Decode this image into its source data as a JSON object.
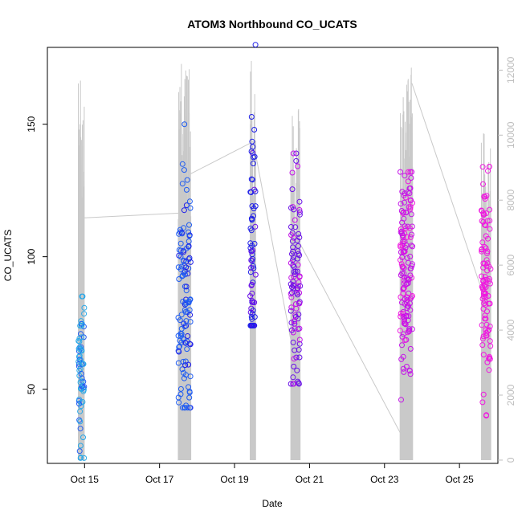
{
  "chart_data": {
    "type": "scatter",
    "title": "ATOM3 Northbound CO_UCATS",
    "xlabel": "Date",
    "ylabel": "CO_UCATS",
    "xlim": [
      "2016-10-14T00:12",
      "2016-10-26T00:36"
    ],
    "ylim": [
      22,
      179
    ],
    "x_ticks": [
      "Oct 15",
      "Oct 17",
      "Oct 19",
      "Oct 21",
      "Oct 23",
      "Oct 25"
    ],
    "y_ticks": [
      50,
      100,
      150
    ],
    "y2_ticks": [
      0,
      2000,
      4000,
      6000,
      8000,
      10000,
      12000
    ],
    "y2_range": [
      -100,
      12700
    ],
    "grid": false,
    "series": [
      {
        "kind": "points",
        "color_scale": [
          "#29a8e8",
          "#1f5cf2",
          "#1f1fe8",
          "#6a10e8",
          "#c413e8",
          "#f016e0"
        ],
        "flights": [
          {
            "date": "2016-10-14T20:00",
            "duration_h": 3.8,
            "count": 70,
            "min": 24,
            "max": 85,
            "center": 56
          },
          {
            "date": "2016-10-17T12:00",
            "duration_h": 8.0,
            "count": 120,
            "min": 43,
            "max": 150,
            "center": 84
          },
          {
            "date": "2016-10-19T10:00",
            "duration_h": 3.5,
            "count": 70,
            "min": 74,
            "max": 180,
            "center": 100
          },
          {
            "date": "2016-10-20T12:00",
            "duration_h": 6.0,
            "count": 100,
            "min": 52,
            "max": 139,
            "center": 88
          },
          {
            "date": "2016-10-23T10:00",
            "duration_h": 8.0,
            "count": 150,
            "min": 46,
            "max": 132,
            "center": 98
          },
          {
            "date": "2016-10-25T14:00",
            "duration_h": 6.0,
            "count": 100,
            "min": 40,
            "max": 134,
            "center": 90
          }
        ]
      },
      {
        "kind": "altitude-line",
        "color": "#c9c9c9",
        "flights": [
          {
            "date": "2016-10-14T20:00",
            "duration_h": 3.8,
            "peak": 11900
          },
          {
            "date": "2016-10-17T12:00",
            "duration_h": 8.0,
            "peak": 12300
          },
          {
            "date": "2016-10-19T10:00",
            "duration_h": 3.5,
            "peak": 12600
          },
          {
            "date": "2016-10-20T12:00",
            "duration_h": 6.0,
            "peak": 10900
          },
          {
            "date": "2016-10-23T10:00",
            "duration_h": 8.0,
            "peak": 12500
          },
          {
            "date": "2016-10-25T14:00",
            "duration_h": 6.0,
            "peak": 10200
          }
        ],
        "connectors": [
          {
            "from": [
              "2016-10-14T21:30",
              7450
            ],
            "to": [
              "2016-10-17T12:30",
              7600
            ]
          },
          {
            "from": [
              "2016-10-17T19:30",
              8800
            ],
            "to": [
              "2016-10-19T12:00",
              9800
            ]
          },
          {
            "from": [
              "2016-10-19T12:00",
              9800
            ],
            "to": [
              "2016-10-20T12:00",
              3700
            ]
          },
          {
            "from": [
              "2016-10-20T17:30",
              6700
            ],
            "to": [
              "2016-10-23T10:30",
              800
            ]
          },
          {
            "from": [
              "2016-10-23T17:30",
              11600
            ],
            "to": [
              "2016-10-25T14:30",
              5200
            ]
          }
        ]
      }
    ]
  }
}
